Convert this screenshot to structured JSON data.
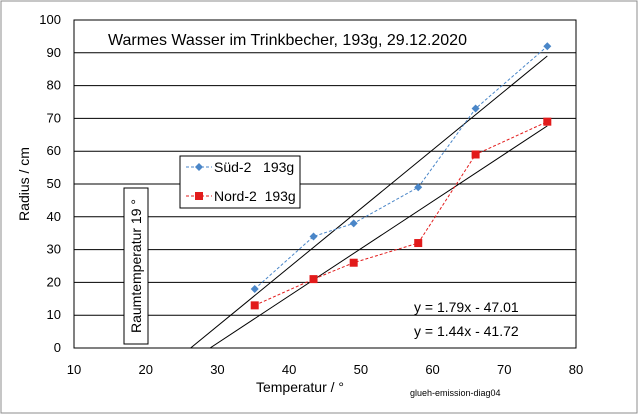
{
  "chart_data": {
    "type": "scatter",
    "title": "Warmes Wasser im Trinkbecher, 193g, 29.12.2020",
    "xlabel": "Temperatur / °",
    "ylabel": "Radius / cm",
    "xlim": [
      10,
      80
    ],
    "ylim": [
      0,
      100
    ],
    "xticks": [
      "10",
      "20",
      "30",
      "40",
      "50",
      "60",
      "70",
      "80"
    ],
    "yticks": [
      "0",
      "10",
      "20",
      "30",
      "40",
      "50",
      "60",
      "70",
      "80",
      "90",
      "100"
    ],
    "grid": "horizontal",
    "legend_position": "center-left",
    "series": [
      {
        "name": "Süd-2   193g",
        "color": "#4a86c8",
        "marker": "diamond",
        "x": [
          35.2,
          43.4,
          49,
          58,
          66,
          76
        ],
        "y": [
          18,
          34,
          38,
          49,
          73,
          92
        ]
      },
      {
        "name": "Nord-2  193g",
        "color": "#e21b1b",
        "marker": "square",
        "x": [
          35.2,
          43.4,
          49,
          58,
          66,
          76
        ],
        "y": [
          13,
          21,
          26,
          32,
          59,
          69
        ]
      }
    ],
    "trendlines": [
      {
        "slope": 1.79,
        "intercept": -47.01,
        "label": "y = 1.79x - 47.01",
        "color": "#000000"
      },
      {
        "slope": 1.44,
        "intercept": -41.72,
        "label": "y = 1.44x - 41.72",
        "color": "#000000"
      }
    ],
    "annotations": {
      "vertical_box": "Raumtemperatur 19 °",
      "footer": "glueh-emission-diag04"
    }
  }
}
